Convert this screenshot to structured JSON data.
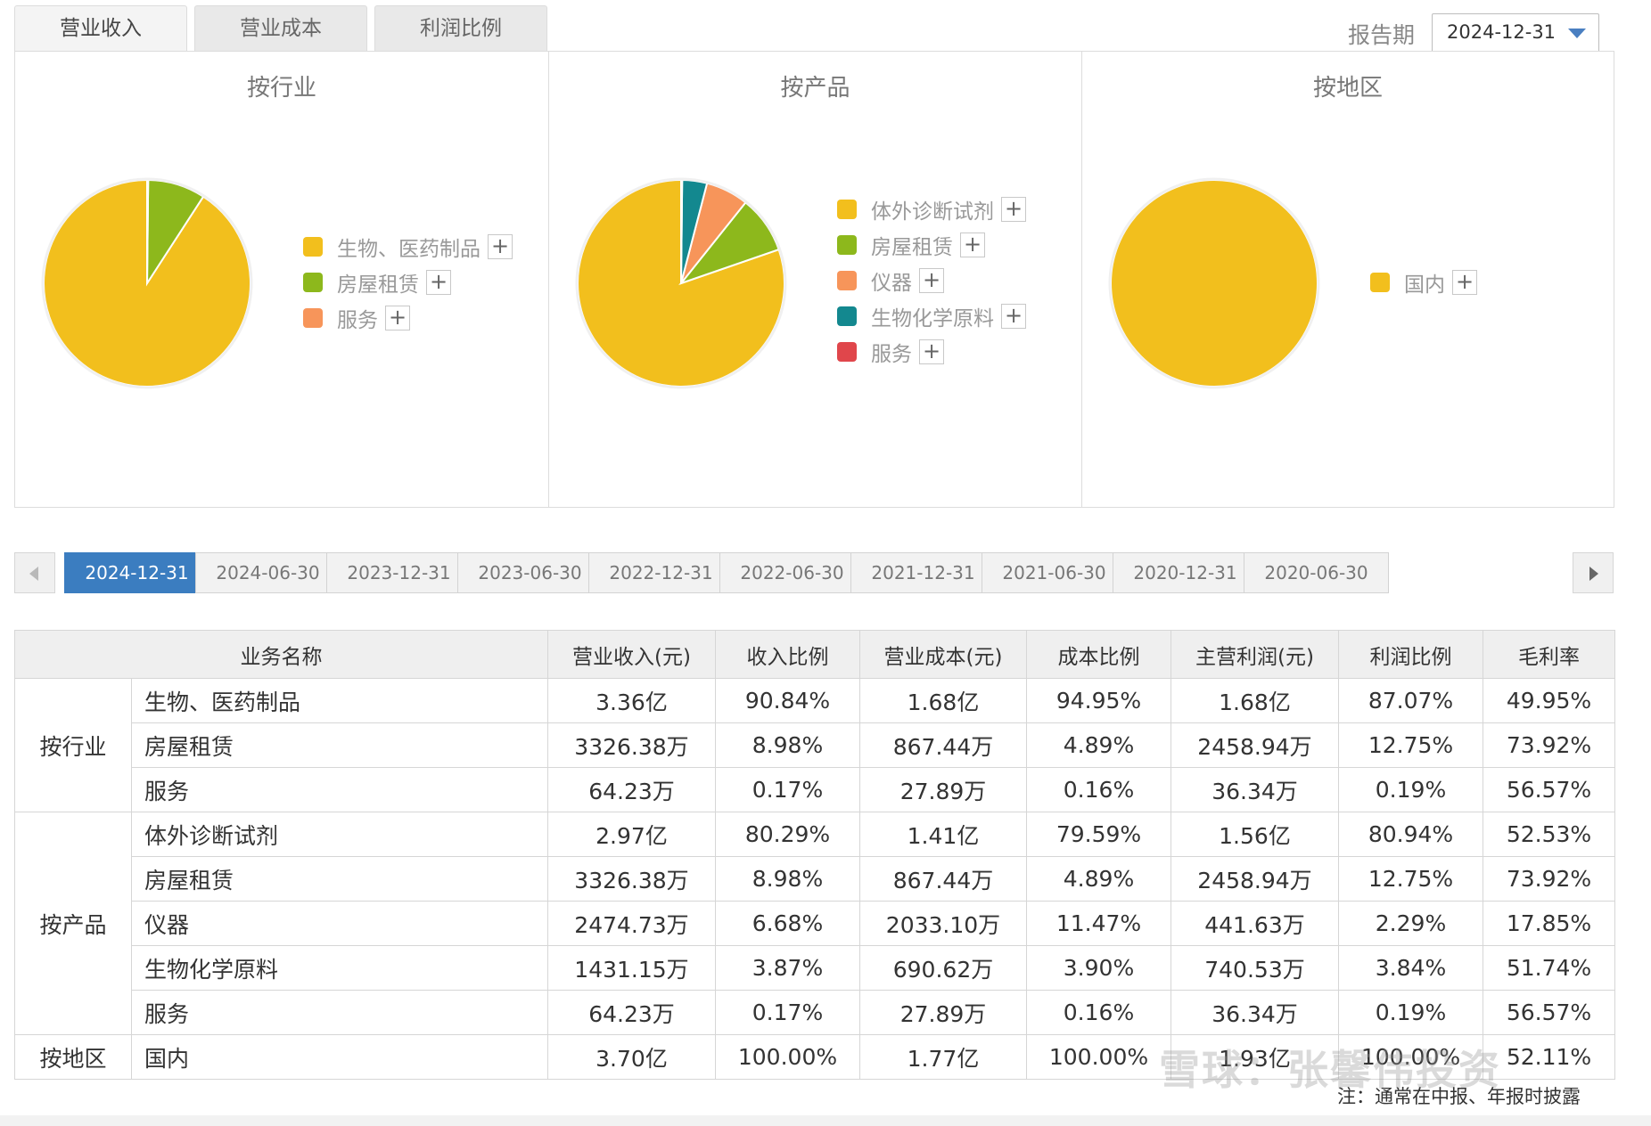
{
  "tabs": [
    "营业收入",
    "营业成本",
    "利润比例"
  ],
  "period": {
    "label": "报告期",
    "value": "2024-12-31"
  },
  "colors": {
    "yellow": "#f2bf1d",
    "green": "#8db81c",
    "orange": "#f7955a",
    "teal": "#13888f",
    "red": "#e0464b"
  },
  "chart_data": [
    {
      "type": "pie",
      "title": "按行业",
      "slices": [
        {
          "label": "生物、医药制品",
          "value": 90.84,
          "color": "#f2bf1d"
        },
        {
          "label": "房屋租赁",
          "value": 8.98,
          "color": "#8db81c"
        },
        {
          "label": "服务",
          "value": 0.17,
          "color": "#f7955a"
        }
      ]
    },
    {
      "type": "pie",
      "title": "按产品",
      "slices": [
        {
          "label": "体外诊断试剂",
          "value": 80.29,
          "color": "#f2bf1d"
        },
        {
          "label": "房屋租赁",
          "value": 8.98,
          "color": "#8db81c"
        },
        {
          "label": "仪器",
          "value": 6.68,
          "color": "#f7955a"
        },
        {
          "label": "生物化学原料",
          "value": 3.87,
          "color": "#13888f"
        },
        {
          "label": "服务",
          "value": 0.17,
          "color": "#e0464b"
        }
      ]
    },
    {
      "type": "pie",
      "title": "按地区",
      "slices": [
        {
          "label": "国内",
          "value": 100.0,
          "color": "#f2bf1d"
        }
      ]
    }
  ],
  "legend_plus": "+",
  "dates": [
    "2024-12-31",
    "2024-06-30",
    "2023-12-31",
    "2023-06-30",
    "2022-12-31",
    "2022-06-30",
    "2021-12-31",
    "2021-06-30",
    "2020-12-31",
    "2020-06-30"
  ],
  "table": {
    "headers": [
      "业务名称",
      "营业收入(元)",
      "收入比例",
      "营业成本(元)",
      "成本比例",
      "主营利润(元)",
      "利润比例",
      "毛利率"
    ],
    "groups": [
      {
        "name": "按行业",
        "rows": [
          [
            "生物、医药制品",
            "3.36亿",
            "90.84%",
            "1.68亿",
            "94.95%",
            "1.68亿",
            "87.07%",
            "49.95%"
          ],
          [
            "房屋租赁",
            "3326.38万",
            "8.98%",
            "867.44万",
            "4.89%",
            "2458.94万",
            "12.75%",
            "73.92%"
          ],
          [
            "服务",
            "64.23万",
            "0.17%",
            "27.89万",
            "0.16%",
            "36.34万",
            "0.19%",
            "56.57%"
          ]
        ]
      },
      {
        "name": "按产品",
        "rows": [
          [
            "体外诊断试剂",
            "2.97亿",
            "80.29%",
            "1.41亿",
            "79.59%",
            "1.56亿",
            "80.94%",
            "52.53%"
          ],
          [
            "房屋租赁",
            "3326.38万",
            "8.98%",
            "867.44万",
            "4.89%",
            "2458.94万",
            "12.75%",
            "73.92%"
          ],
          [
            "仪器",
            "2474.73万",
            "6.68%",
            "2033.10万",
            "11.47%",
            "441.63万",
            "2.29%",
            "17.85%"
          ],
          [
            "生物化学原料",
            "1431.15万",
            "3.87%",
            "690.62万",
            "3.90%",
            "740.53万",
            "3.84%",
            "51.74%"
          ],
          [
            "服务",
            "64.23万",
            "0.17%",
            "27.89万",
            "0.16%",
            "36.34万",
            "0.19%",
            "56.57%"
          ]
        ]
      },
      {
        "name": "按地区",
        "rows": [
          [
            "国内",
            "3.70亿",
            "100.00%",
            "1.77亿",
            "100.00%",
            "1.93亿",
            "100.00%",
            "52.11%"
          ]
        ]
      }
    ]
  },
  "footnote": "注：通常在中报、年报时披露",
  "watermark": "雪球：张馨伟投资"
}
